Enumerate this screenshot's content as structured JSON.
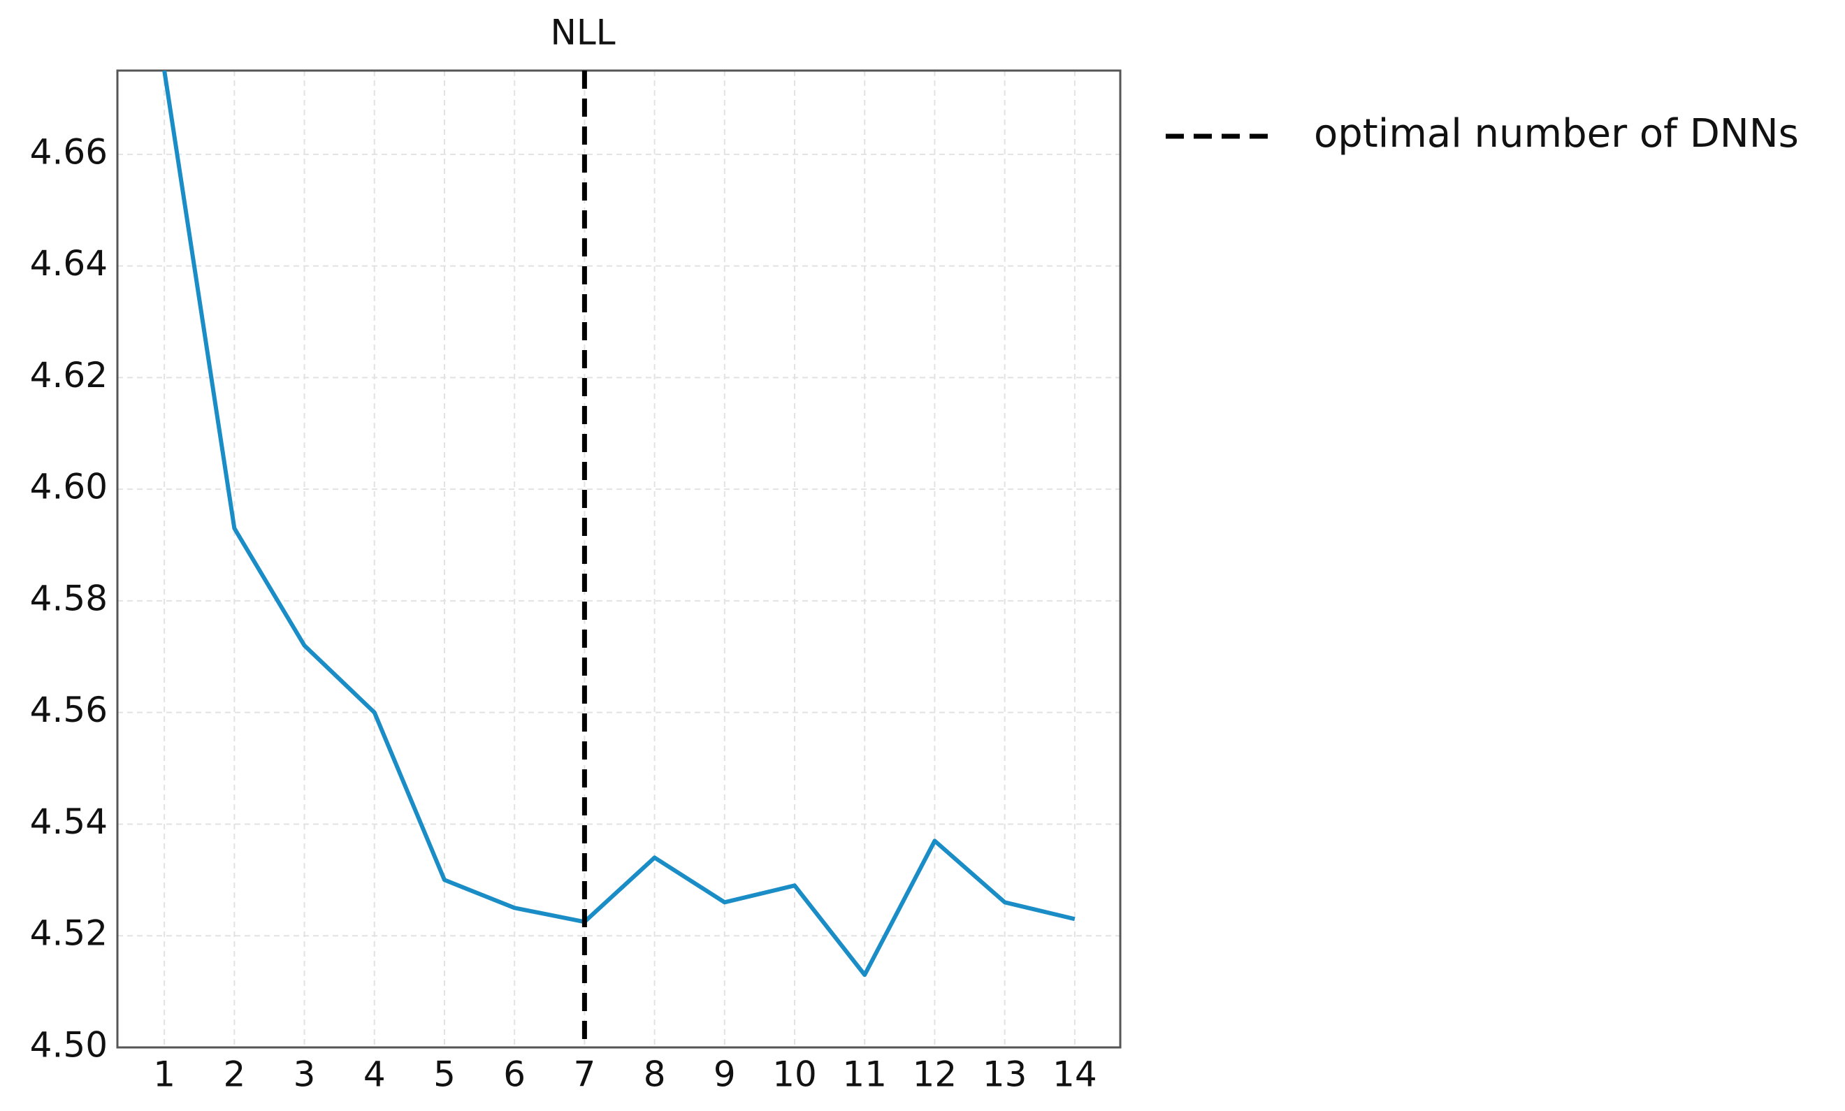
{
  "chart_data": {
    "type": "line",
    "title": "NLL",
    "x": [
      1,
      2,
      3,
      4,
      5,
      6,
      7,
      8,
      9,
      10,
      11,
      12,
      13,
      14
    ],
    "series": [
      {
        "name": null,
        "color": "#1a8dc6",
        "values": [
          4.675,
          4.593,
          4.572,
          4.56,
          4.53,
          4.525,
          4.5225,
          4.534,
          4.526,
          4.529,
          4.513,
          4.537,
          4.526,
          4.523
        ]
      }
    ],
    "xlim": [
      0.33,
      14.65
    ],
    "xticks": [
      1,
      2,
      3,
      4,
      5,
      6,
      7,
      8,
      9,
      10,
      11,
      12,
      13,
      14
    ],
    "ylim": [
      4.5,
      4.675
    ],
    "yticks": [
      {
        "value": 4.5,
        "label": "4.50"
      },
      {
        "value": 4.52,
        "label": "4.52"
      },
      {
        "value": 4.54,
        "label": "4.54"
      },
      {
        "value": 4.56,
        "label": "4.56"
      },
      {
        "value": 4.58,
        "label": "4.58"
      },
      {
        "value": 4.6,
        "label": "4.60"
      },
      {
        "value": 4.62,
        "label": "4.62"
      },
      {
        "value": 4.64,
        "label": "4.64"
      },
      {
        "value": 4.66,
        "label": "4.66"
      }
    ],
    "grid": true,
    "vline": 7,
    "vline_label": "optimal number of DNNs",
    "vline_color": "#000000",
    "legend": "outside right"
  }
}
